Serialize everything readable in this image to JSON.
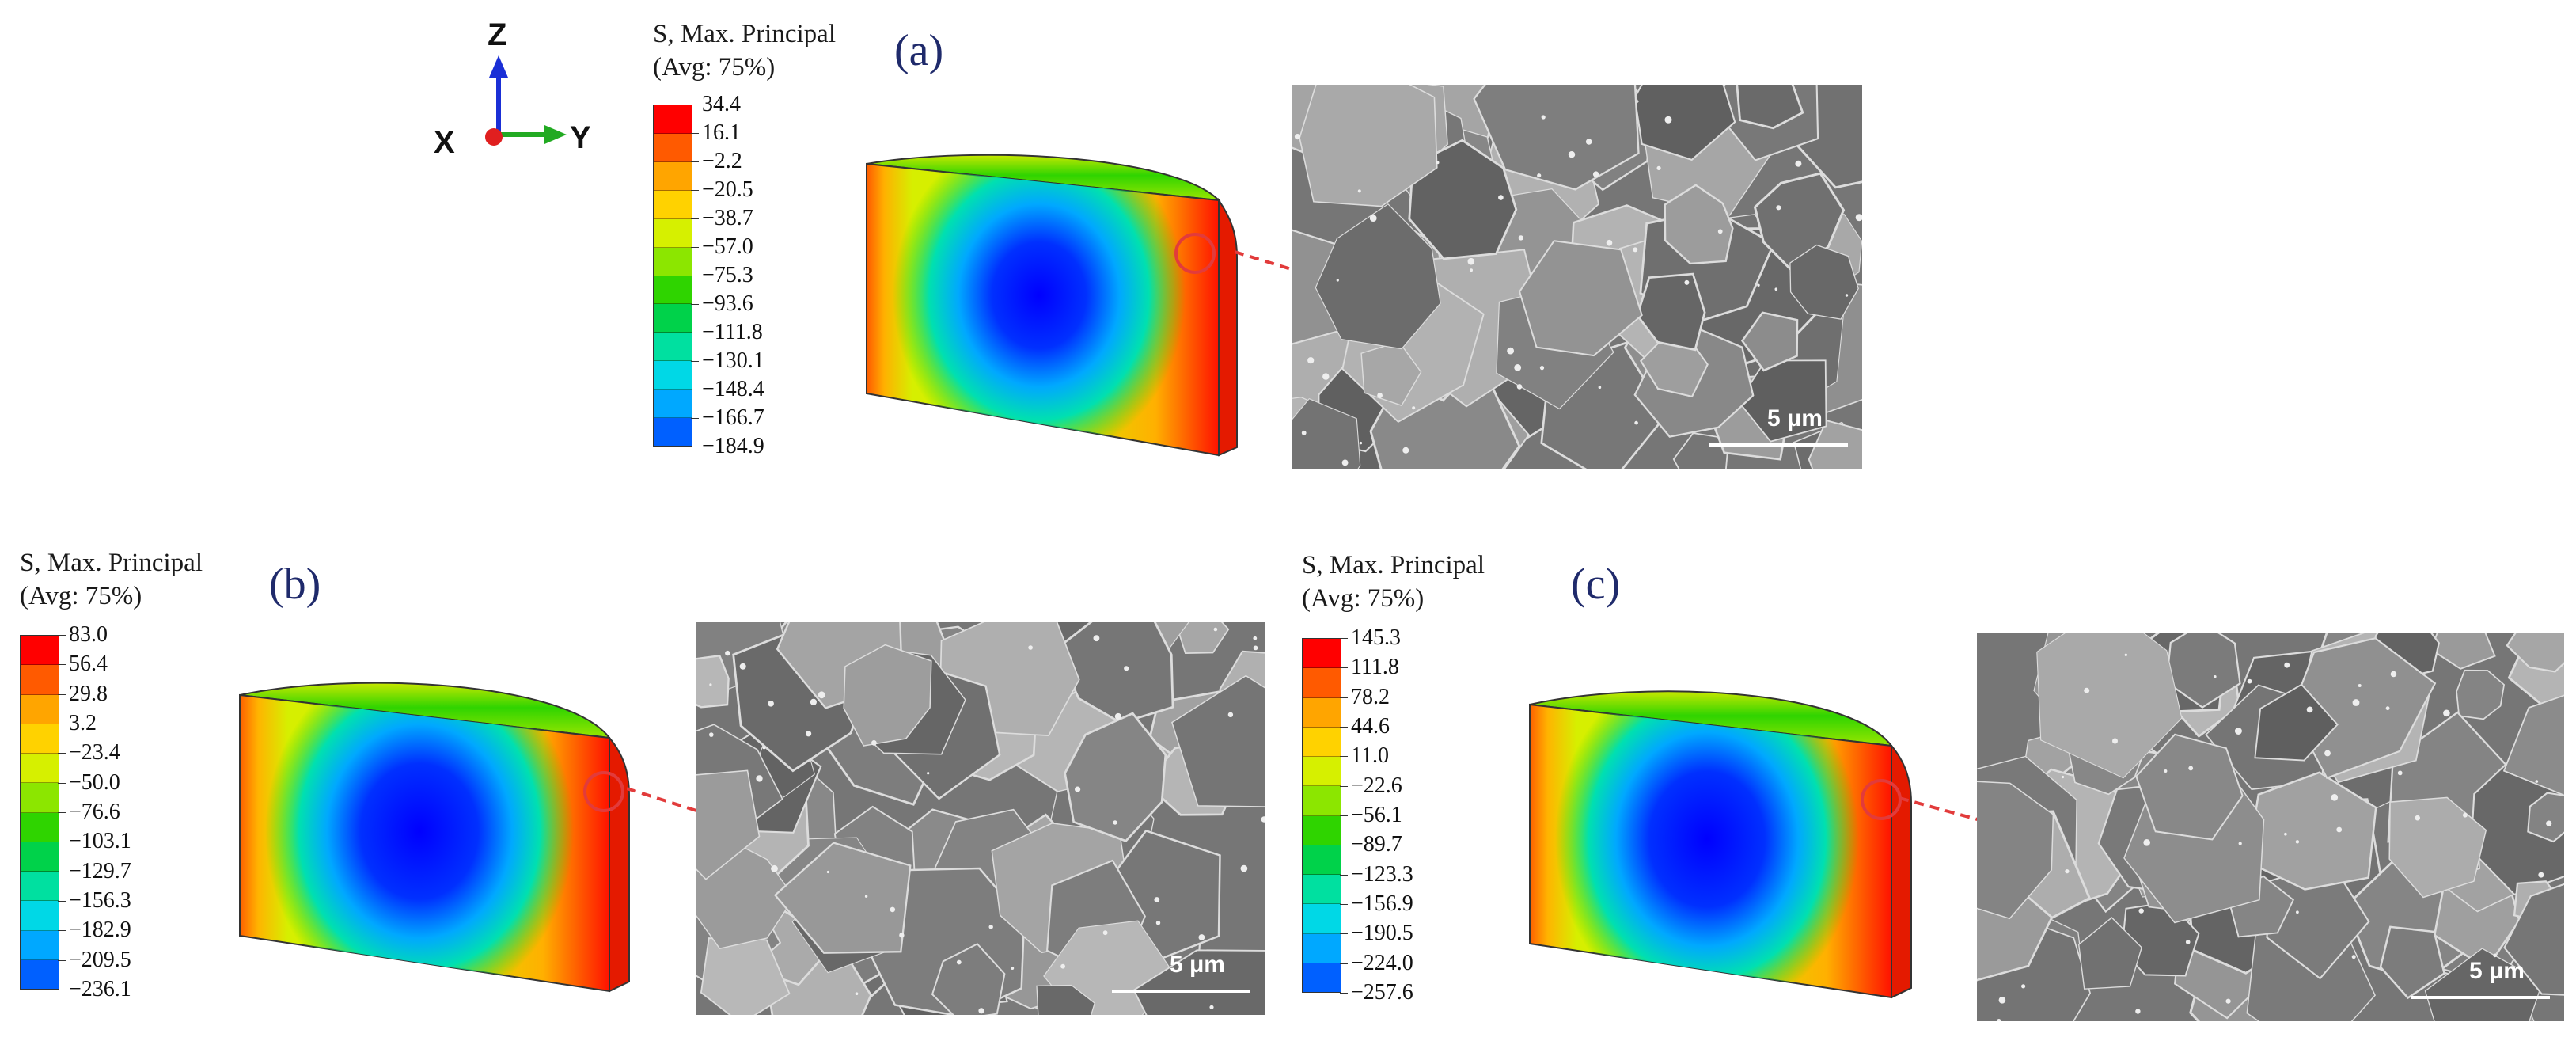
{
  "axis_triad": {
    "z_label": "Z",
    "x_label": "X",
    "y_label": "Y"
  },
  "colors": {
    "panel_label": "#1f2a6b",
    "leader": "#e23b3b",
    "contour_map": [
      "#ff0000",
      "#ff5a00",
      "#ffa500",
      "#ffd200",
      "#d6f000",
      "#8ce600",
      "#2fd400",
      "#00d24a",
      "#00e0a0",
      "#00d8e6",
      "#00a8ff",
      "#0060ff",
      "#0000ff"
    ]
  },
  "panels": [
    {
      "id": "a",
      "label": "(a)",
      "legend": {
        "title_line1": "S, Max. Principal",
        "title_line2": "(Avg: 75%)",
        "values": [
          "34.4",
          "16.1",
          "−2.2",
          "−20.5",
          "−38.7",
          "−57.0",
          "−75.3",
          "−93.6",
          "−111.8",
          "−130.1",
          "−148.4",
          "−166.7",
          "−184.9"
        ]
      },
      "sem": {
        "scale_label": "5 μm"
      }
    },
    {
      "id": "b",
      "label": "(b)",
      "legend": {
        "title_line1": "S, Max. Principal",
        "title_line2": "(Avg: 75%)",
        "values": [
          "83.0",
          "56.4",
          "29.8",
          "3.2",
          "−23.4",
          "−50.0",
          "−76.6",
          "−103.1",
          "−129.7",
          "−156.3",
          "−182.9",
          "−209.5",
          "−236.1"
        ]
      },
      "sem": {
        "scale_label": "5 μm"
      }
    },
    {
      "id": "c",
      "label": "(c)",
      "legend": {
        "title_line1": "S, Max. Principal",
        "title_line2": "(Avg: 75%)",
        "values": [
          "145.3",
          "111.8",
          "78.2",
          "44.6",
          "11.0",
          "−22.6",
          "−56.1",
          "−89.7",
          "−123.3",
          "−156.9",
          "−190.5",
          "−224.0",
          "−257.6"
        ]
      },
      "sem": {
        "scale_label": "5 μm"
      }
    }
  ]
}
